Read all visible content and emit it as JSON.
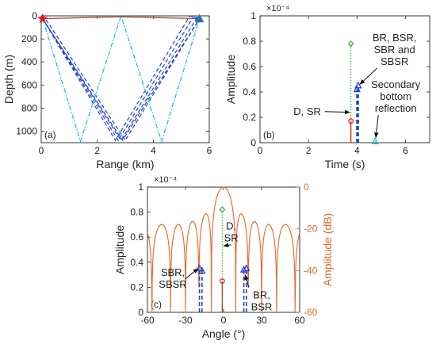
{
  "chart_data": [
    {
      "panel_label": "(a)",
      "type": "line",
      "title": "",
      "xlabel": "Range (km)",
      "ylabel": "Depth (m)",
      "xlim": [
        0,
        6
      ],
      "ylim": [
        1100,
        0
      ],
      "xticks": [
        0,
        2,
        4,
        6
      ],
      "yticks": [
        0,
        200,
        400,
        600,
        800,
        1000
      ],
      "grid": false,
      "source": {
        "x": 0.05,
        "y": 25,
        "marker": "star",
        "color": "#e8141e"
      },
      "receiver": {
        "x": 5.65,
        "y": 25,
        "marker": "triangle",
        "color": "#1f77b4"
      },
      "series": [
        {
          "style": "solid",
          "color": "#d62728",
          "paths": [
            [
              [
                0.05,
                25
              ],
              [
                2.85,
                8
              ],
              [
                5.65,
                25
              ]
            ]
          ]
        },
        {
          "style": "dotted",
          "color": "#2ca02c",
          "paths": [
            [
              [
                0.05,
                25
              ],
              [
                2.85,
                0
              ],
              [
                5.65,
                25
              ]
            ]
          ]
        },
        {
          "style": "dashed",
          "color": "#1f3fd6",
          "paths": [
            [
              [
                0.05,
                25
              ],
              [
                2.65,
                1080
              ],
              [
                5.3,
                0
              ],
              [
                5.65,
                25
              ]
            ],
            [
              [
                0.05,
                25
              ],
              [
                2.75,
                1080
              ],
              [
                5.45,
                0
              ],
              [
                5.65,
                25
              ]
            ],
            [
              [
                0.05,
                25
              ],
              [
                2.85,
                1080
              ],
              [
                5.6,
                0
              ],
              [
                5.65,
                25
              ]
            ],
            [
              [
                0,
                0
              ],
              [
                0.05,
                25
              ],
              [
                2.9,
                1080
              ],
              [
                5.65,
                25
              ]
            ],
            [
              [
                0,
                0
              ],
              [
                0.15,
                25
              ],
              [
                3.0,
                1080
              ],
              [
                5.65,
                25
              ]
            ]
          ]
        },
        {
          "style": "dashdot",
          "color": "#17becf",
          "paths": [
            [
              [
                0.05,
                25
              ],
              [
                1.4,
                1090
              ],
              [
                2.85,
                0
              ],
              [
                4.3,
                1090
              ],
              [
                5.65,
                25
              ]
            ]
          ]
        }
      ]
    },
    {
      "panel_label": "(b)",
      "type": "stem",
      "title": "",
      "xlabel": "Time (s)",
      "ylabel": "Amplitude",
      "exponent_label": "×10⁻⁴",
      "xlim": [
        0,
        7
      ],
      "ylim": [
        0,
        1
      ],
      "xticks": [
        0,
        2,
        4,
        6
      ],
      "yticks": [
        0,
        0.2,
        0.4,
        0.6,
        0.8,
        1
      ],
      "grid": false,
      "stems": [
        {
          "x": 3.75,
          "y": 0.78,
          "marker": "diamond",
          "style": "dotted",
          "color": "#2ca02c"
        },
        {
          "x": 3.75,
          "y": 0.17,
          "marker": "circle",
          "style": "solid",
          "color": "#d62728"
        },
        {
          "x": 4.0,
          "y": 0.42,
          "marker": "triangle",
          "style": "dashed",
          "color": "#1f3fd6"
        },
        {
          "x": 4.05,
          "y": 0.45,
          "marker": "triangle",
          "style": "dashed",
          "color": "#1f3fd6"
        },
        {
          "x": 4.75,
          "y": 0.01,
          "marker": "triangle",
          "style": "dashdot",
          "color": "#17becf"
        }
      ],
      "annotations": [
        {
          "text": [
            "D, SR"
          ],
          "tx": 1.95,
          "ty": 0.22,
          "ax": 3.7,
          "ay": 0.24
        },
        {
          "text": [
            "BR, BSR,",
            "SBR and",
            "SBSR"
          ],
          "tx": 5.55,
          "ty": 0.8,
          "ax": 4.12,
          "ay": 0.46
        },
        {
          "text": [
            "Secondary",
            "bottom",
            "reflection"
          ],
          "tx": 5.6,
          "ty": 0.43,
          "ax": 4.78,
          "ay": 0.04
        }
      ]
    },
    {
      "panel_label": "(c)",
      "type": "stem",
      "title": "",
      "xlabel": "Angle (°)",
      "ylabel": "Amplitude",
      "y2label": "Amplitude (dB)",
      "exponent_label": "×10⁻⁴",
      "xlim": [
        -60,
        60
      ],
      "ylim": [
        0,
        1
      ],
      "y2lim": [
        -60,
        0
      ],
      "xticks": [
        -60,
        -30,
        0,
        30,
        60
      ],
      "yticks": [
        0,
        0.2,
        0.4,
        0.6,
        0.8,
        1
      ],
      "y2ticks": [
        0,
        -20,
        -40,
        -60
      ],
      "grid": false,
      "beam_pattern": {
        "color": "#e8652a",
        "sidelobe_peaks_db": -20,
        "nulls_db": -60
      },
      "stems": [
        {
          "x": -17,
          "y": 0.33,
          "marker": "triangle",
          "style": "dashed",
          "color": "#1f3fd6"
        },
        {
          "x": -19,
          "y": 0.35,
          "marker": "triangle",
          "style": "dashed",
          "color": "#1f3fd6"
        },
        {
          "x": -1,
          "y": 0.25,
          "marker": "circle",
          "style": "solid",
          "color": "#d62728"
        },
        {
          "x": -1,
          "y": 0.82,
          "marker": "diamond",
          "style": "dotted",
          "color": "#2ca02c"
        },
        {
          "x": 16,
          "y": 0.34,
          "marker": "triangle",
          "style": "dashed",
          "color": "#1f3fd6"
        },
        {
          "x": 18,
          "y": 0.35,
          "marker": "triangle",
          "style": "dashed",
          "color": "#1f3fd6"
        }
      ],
      "annotations": [
        {
          "text": [
            "SBR,",
            "SBSR"
          ],
          "tx": -40,
          "ty": 0.29,
          "ax": -20,
          "ay": 0.35
        },
        {
          "text": [
            "D,",
            "SR"
          ],
          "tx": 6,
          "ty": 0.66,
          "ax": 0,
          "ay": 0.53
        },
        {
          "text": [
            "BR,",
            "BSR"
          ],
          "tx": 30,
          "ty": 0.11,
          "ax": 17,
          "ay": 0.3
        }
      ]
    }
  ]
}
